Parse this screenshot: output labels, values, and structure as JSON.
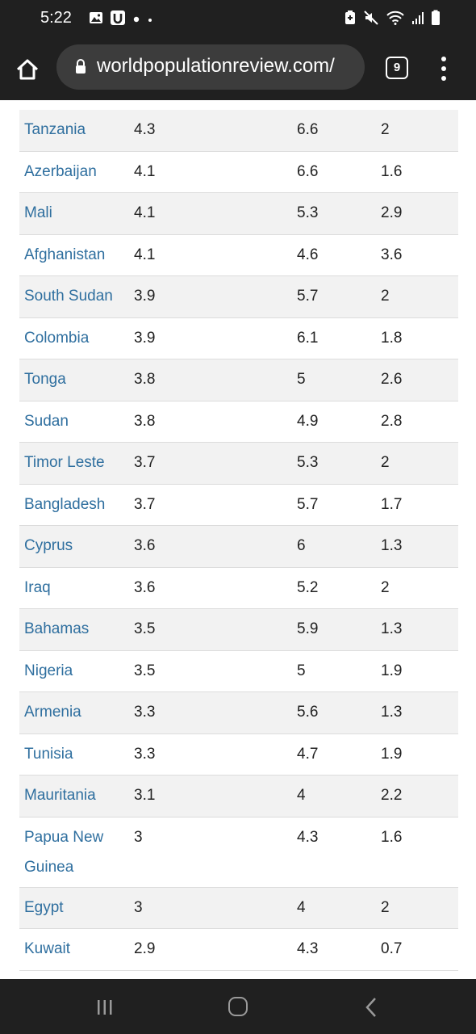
{
  "status_bar": {
    "time": "5:22",
    "left_icons": [
      "image-icon",
      "u-app-icon",
      "dot-icon",
      "small-dot-icon"
    ],
    "right_icons": [
      "battery-saver-icon",
      "mute-icon",
      "wifi-icon",
      "signal-icon",
      "battery-icon"
    ]
  },
  "browser": {
    "url": "worldpopulationreview.com/",
    "tab_count": "9"
  },
  "table": {
    "rows": [
      {
        "country": "Tanzania",
        "v1": "4.3",
        "v2": "6.6",
        "v3": "2"
      },
      {
        "country": "Azerbaijan",
        "v1": "4.1",
        "v2": "6.6",
        "v3": "1.6"
      },
      {
        "country": "Mali",
        "v1": "4.1",
        "v2": "5.3",
        "v3": "2.9"
      },
      {
        "country": "Afghanistan",
        "v1": "4.1",
        "v2": "4.6",
        "v3": "3.6"
      },
      {
        "country": "South Sudan",
        "v1": "3.9",
        "v2": "5.7",
        "v3": "2"
      },
      {
        "country": "Colombia",
        "v1": "3.9",
        "v2": "6.1",
        "v3": "1.8"
      },
      {
        "country": "Tonga",
        "v1": "3.8",
        "v2": "5",
        "v3": "2.6"
      },
      {
        "country": "Sudan",
        "v1": "3.8",
        "v2": "4.9",
        "v3": "2.8"
      },
      {
        "country": "Timor Leste",
        "v1": "3.7",
        "v2": "5.3",
        "v3": "2"
      },
      {
        "country": "Bangladesh",
        "v1": "3.7",
        "v2": "5.7",
        "v3": "1.7"
      },
      {
        "country": "Cyprus",
        "v1": "3.6",
        "v2": "6",
        "v3": "1.3"
      },
      {
        "country": "Iraq",
        "v1": "3.6",
        "v2": "5.2",
        "v3": "2"
      },
      {
        "country": "Bahamas",
        "v1": "3.5",
        "v2": "5.9",
        "v3": "1.3"
      },
      {
        "country": "Nigeria",
        "v1": "3.5",
        "v2": "5",
        "v3": "1.9"
      },
      {
        "country": "Armenia",
        "v1": "3.3",
        "v2": "5.6",
        "v3": "1.3"
      },
      {
        "country": "Tunisia",
        "v1": "3.3",
        "v2": "4.7",
        "v3": "1.9"
      },
      {
        "country": "Mauritania",
        "v1": "3.1",
        "v2": "4",
        "v3": "2.2"
      },
      {
        "country": "Papua New Guinea",
        "v1": "3",
        "v2": "4.3",
        "v3": "1.6"
      },
      {
        "country": "Egypt",
        "v1": "3",
        "v2": "4",
        "v3": "2"
      },
      {
        "country": "Kuwait",
        "v1": "2.9",
        "v2": "4.3",
        "v3": "0.7"
      }
    ]
  },
  "nav_bar": {
    "buttons": [
      "recent-apps-icon",
      "home-icon",
      "back-icon"
    ]
  },
  "colors": {
    "link": "#2f6f9f",
    "stripe": "#f2f2f2",
    "chrome": "#202020"
  }
}
